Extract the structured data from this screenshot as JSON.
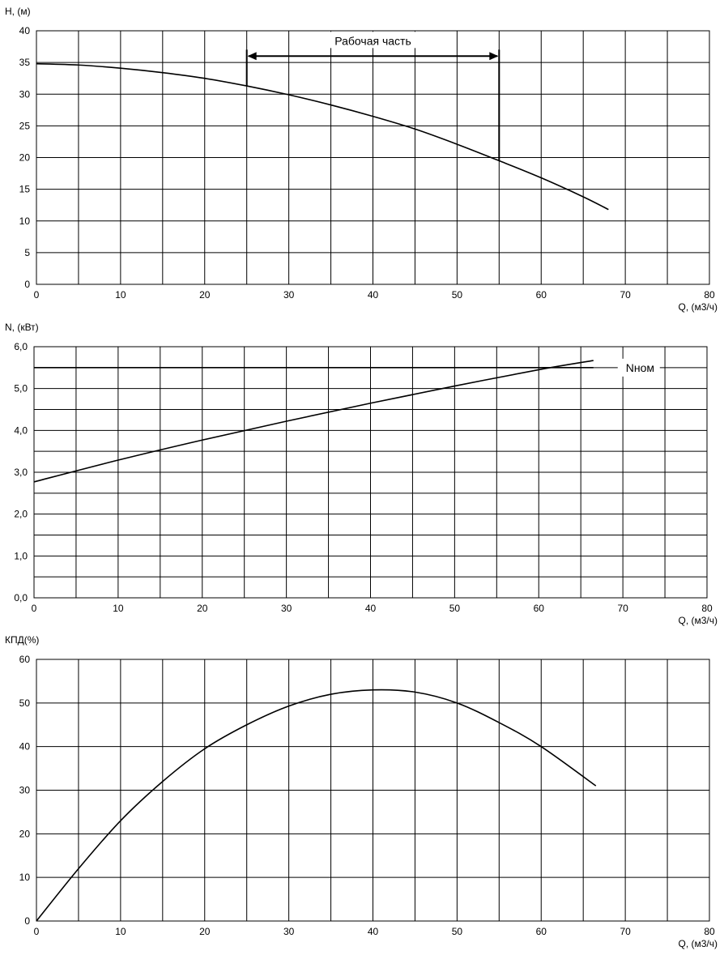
{
  "chart_data": [
    {
      "type": "line",
      "title": "",
      "ylabel": "Н, (м)",
      "xlabel": "Q, (м3/ч)",
      "xlim": [
        0,
        80
      ],
      "ylim": [
        0,
        40
      ],
      "x_step": 5,
      "y_step": 5,
      "x_label_step": 10,
      "y_label_step": 5,
      "y_decimals": 0,
      "grid": true,
      "series": [
        {
          "x": [
            0,
            5,
            10,
            15,
            20,
            25,
            30,
            35,
            40,
            45,
            50,
            55,
            60,
            65,
            68
          ],
          "values": [
            34.8,
            34.6,
            34.1,
            33.4,
            32.5,
            31.3,
            29.9,
            28.3,
            26.5,
            24.5,
            22.1,
            19.5,
            16.8,
            13.8,
            11.8
          ]
        }
      ],
      "annotations": [
        {
          "type": "range-arrow",
          "text": "Рабочая часть",
          "x_from": 25,
          "x_to": 55,
          "y": 36,
          "y_from_left": 31.3,
          "y_from_right": 19.5
        }
      ]
    },
    {
      "type": "line",
      "title": "",
      "ylabel": "N, (кВт)",
      "xlabel": "Q, (м3/ч)",
      "xlim": [
        0,
        80
      ],
      "ylim": [
        0,
        6
      ],
      "x_step": 5,
      "y_step": 0.5,
      "x_label_step": 10,
      "y_label_step": 1,
      "y_decimals": 1,
      "decimal_comma": true,
      "grid": true,
      "series": [
        {
          "x": [
            0,
            10,
            20,
            30,
            40,
            50,
            60,
            66.5
          ],
          "values": [
            2.77,
            3.29,
            3.77,
            4.22,
            4.65,
            5.06,
            5.45,
            5.67
          ]
        }
      ],
      "hlines": [
        {
          "label": "Nном",
          "y": 5.5,
          "x_from": 0,
          "x_to": 66.5
        }
      ]
    },
    {
      "type": "line",
      "title": "",
      "ylabel": "КПД(%)",
      "xlabel": "Q, (м3/ч)",
      "xlim": [
        0,
        80
      ],
      "ylim": [
        0,
        60
      ],
      "x_step": 5,
      "y_step": 10,
      "x_label_step": 10,
      "y_label_step": 10,
      "y_decimals": 0,
      "grid": true,
      "series": [
        {
          "x": [
            0,
            5,
            10,
            15,
            20,
            25,
            30,
            35,
            40,
            45,
            50,
            55,
            60,
            66.5
          ],
          "values": [
            0,
            12,
            23,
            32,
            39.5,
            45,
            49.3,
            52,
            53,
            52.5,
            50,
            45.5,
            40,
            31
          ]
        }
      ]
    }
  ]
}
